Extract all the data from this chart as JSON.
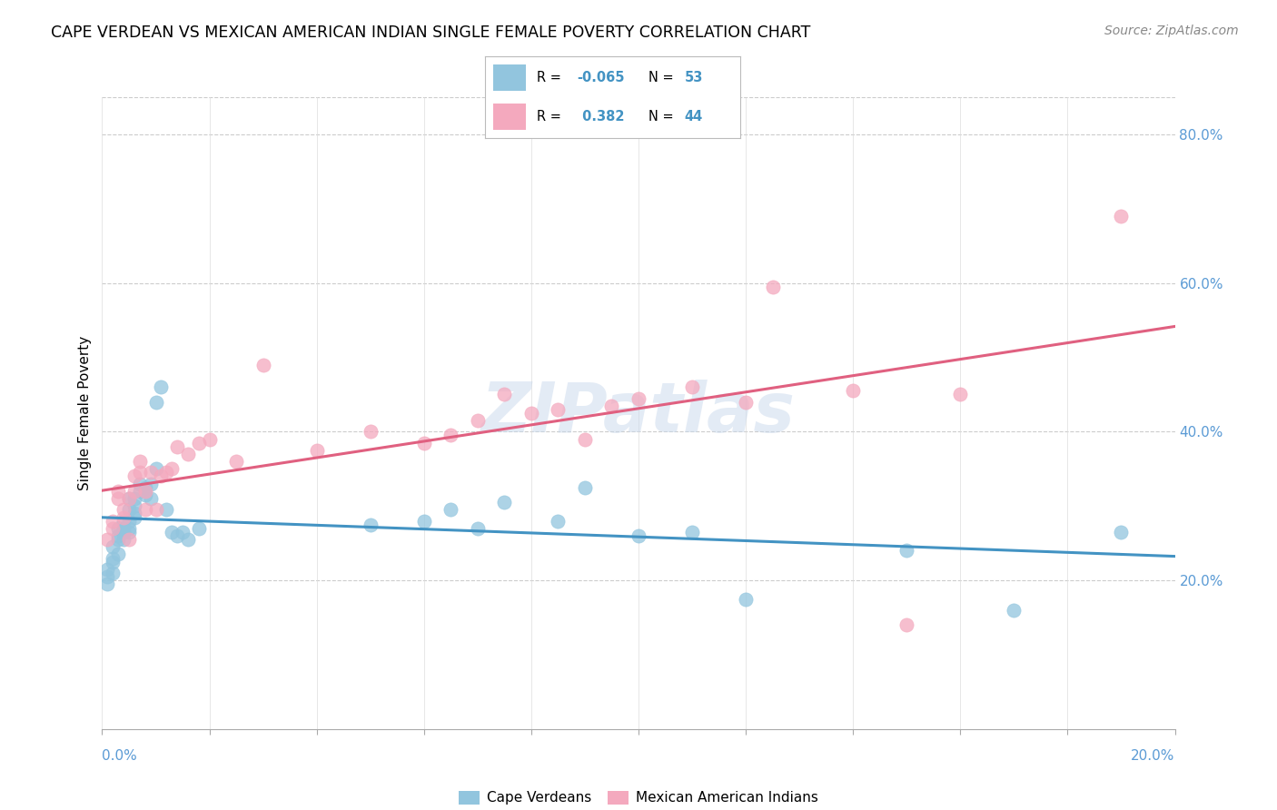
{
  "title": "CAPE VERDEAN VS MEXICAN AMERICAN INDIAN SINGLE FEMALE POVERTY CORRELATION CHART",
  "source": "Source: ZipAtlas.com",
  "ylabel": "Single Female Poverty",
  "right_yticks": [
    "20.0%",
    "40.0%",
    "60.0%",
    "80.0%"
  ],
  "right_ytick_values": [
    0.2,
    0.4,
    0.6,
    0.8
  ],
  "legend_label1": "Cape Verdeans",
  "legend_label2": "Mexican American Indians",
  "color_blue": "#92c5de",
  "color_pink": "#f4a9be",
  "color_blue_line": "#4393c3",
  "color_pink_line": "#e06080",
  "watermark": "ZIPatlas",
  "xmin": 0.0,
  "xmax": 0.2,
  "ymin": 0.0,
  "ymax": 0.85,
  "blue_r": "-0.065",
  "blue_n": "53",
  "pink_r": "0.382",
  "pink_n": "44",
  "blue_scatter_x": [
    0.001,
    0.001,
    0.001,
    0.002,
    0.002,
    0.002,
    0.002,
    0.003,
    0.003,
    0.003,
    0.003,
    0.004,
    0.004,
    0.004,
    0.004,
    0.004,
    0.005,
    0.005,
    0.005,
    0.005,
    0.005,
    0.006,
    0.006,
    0.006,
    0.006,
    0.007,
    0.007,
    0.008,
    0.008,
    0.009,
    0.009,
    0.01,
    0.01,
    0.011,
    0.012,
    0.013,
    0.014,
    0.015,
    0.016,
    0.018,
    0.05,
    0.06,
    0.065,
    0.07,
    0.075,
    0.085,
    0.09,
    0.1,
    0.11,
    0.12,
    0.15,
    0.17,
    0.19
  ],
  "blue_scatter_y": [
    0.205,
    0.195,
    0.215,
    0.21,
    0.225,
    0.23,
    0.245,
    0.235,
    0.255,
    0.26,
    0.27,
    0.255,
    0.265,
    0.265,
    0.27,
    0.28,
    0.265,
    0.27,
    0.28,
    0.295,
    0.31,
    0.285,
    0.29,
    0.3,
    0.31,
    0.32,
    0.33,
    0.315,
    0.325,
    0.31,
    0.33,
    0.35,
    0.44,
    0.46,
    0.295,
    0.265,
    0.26,
    0.265,
    0.255,
    0.27,
    0.275,
    0.28,
    0.295,
    0.27,
    0.305,
    0.28,
    0.325,
    0.26,
    0.265,
    0.175,
    0.24,
    0.16,
    0.265
  ],
  "pink_scatter_x": [
    0.001,
    0.002,
    0.002,
    0.003,
    0.003,
    0.004,
    0.004,
    0.005,
    0.005,
    0.006,
    0.006,
    0.007,
    0.007,
    0.008,
    0.008,
    0.009,
    0.01,
    0.011,
    0.012,
    0.013,
    0.014,
    0.016,
    0.018,
    0.02,
    0.025,
    0.03,
    0.04,
    0.05,
    0.06,
    0.065,
    0.07,
    0.075,
    0.08,
    0.085,
    0.09,
    0.095,
    0.1,
    0.11,
    0.12,
    0.125,
    0.14,
    0.15,
    0.16,
    0.19
  ],
  "pink_scatter_y": [
    0.255,
    0.27,
    0.28,
    0.31,
    0.32,
    0.285,
    0.295,
    0.255,
    0.31,
    0.32,
    0.34,
    0.345,
    0.36,
    0.295,
    0.32,
    0.345,
    0.295,
    0.34,
    0.345,
    0.35,
    0.38,
    0.37,
    0.385,
    0.39,
    0.36,
    0.49,
    0.375,
    0.4,
    0.385,
    0.395,
    0.415,
    0.45,
    0.425,
    0.43,
    0.39,
    0.435,
    0.445,
    0.46,
    0.44,
    0.595,
    0.455,
    0.14,
    0.45,
    0.69
  ]
}
